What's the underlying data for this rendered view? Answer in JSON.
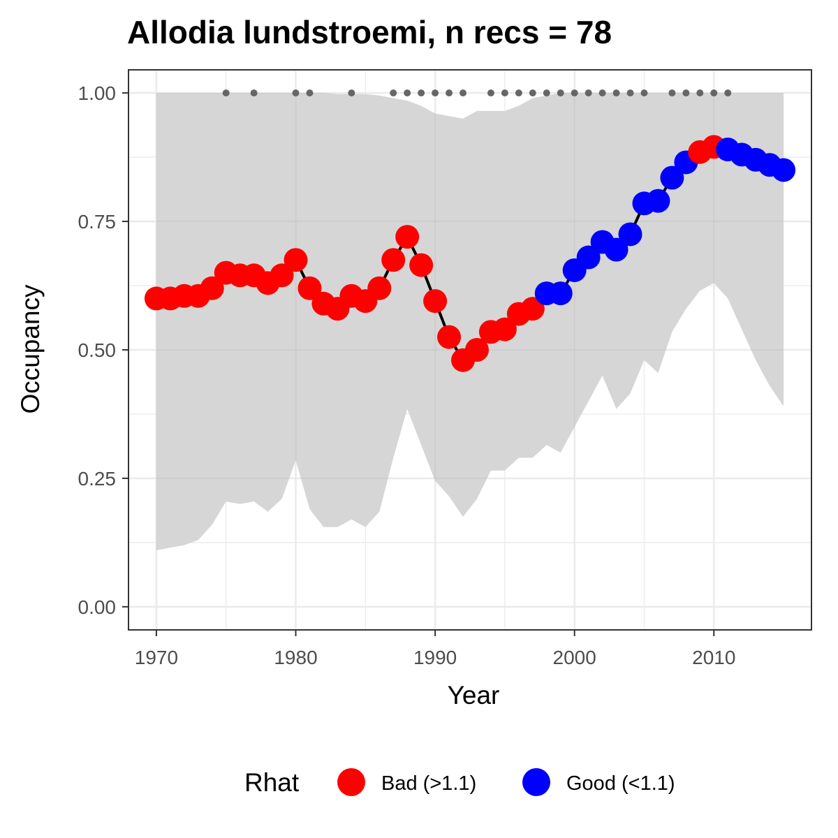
{
  "chart_data": {
    "type": "line",
    "title": "Allodia lundstroemi, n recs = 78",
    "xlabel": "Year",
    "ylabel": "Occupancy",
    "xlim": [
      1968,
      2017
    ],
    "ylim": [
      -0.045,
      1.045
    ],
    "x_ticks": [
      1970,
      1980,
      1990,
      2000,
      2010
    ],
    "x_tick_labels": [
      "1970",
      "1980",
      "1990",
      "2000",
      "2010"
    ],
    "y_ticks": [
      0,
      0.25,
      0.5,
      0.75,
      1
    ],
    "y_tick_labels": [
      "0.00",
      "0.25",
      "0.50",
      "0.75",
      "1.00"
    ],
    "grid": true,
    "legend": {
      "title": "Rhat",
      "placement": "bottom",
      "items": [
        {
          "key": "bad",
          "label": "Bad (>1.1)",
          "color": "#ff0000"
        },
        {
          "key": "good",
          "label": "Good (<1.1)",
          "color": "#0000ff"
        }
      ]
    },
    "colors": {
      "bad": "#ff0000",
      "good": "#0000ff",
      "line": "#000000",
      "ribbon": "#d6d6d6",
      "record_dot": "#666666"
    },
    "x": [
      1970,
      1971,
      1972,
      1973,
      1974,
      1975,
      1976,
      1977,
      1978,
      1979,
      1980,
      1981,
      1982,
      1983,
      1984,
      1985,
      1986,
      1987,
      1988,
      1989,
      1990,
      1991,
      1992,
      1993,
      1994,
      1995,
      1996,
      1997,
      1998,
      1999,
      2000,
      2001,
      2002,
      2003,
      2004,
      2005,
      2006,
      2007,
      2008,
      2009,
      2010,
      2011,
      2012,
      2013,
      2014,
      2015
    ],
    "occupancy": [
      0.6,
      0.6,
      0.605,
      0.605,
      0.62,
      0.65,
      0.645,
      0.645,
      0.63,
      0.645,
      0.675,
      0.62,
      0.59,
      0.58,
      0.605,
      0.595,
      0.62,
      0.675,
      0.72,
      0.665,
      0.595,
      0.525,
      0.48,
      0.5,
      0.535,
      0.54,
      0.57,
      0.58,
      0.61,
      0.61,
      0.655,
      0.68,
      0.71,
      0.695,
      0.725,
      0.785,
      0.79,
      0.835,
      0.865,
      0.885,
      0.895,
      0.89,
      0.88,
      0.87,
      0.86,
      0.85
    ],
    "rhat": [
      "bad",
      "bad",
      "bad",
      "bad",
      "bad",
      "bad",
      "bad",
      "bad",
      "bad",
      "bad",
      "bad",
      "bad",
      "bad",
      "bad",
      "bad",
      "bad",
      "bad",
      "bad",
      "bad",
      "bad",
      "bad",
      "bad",
      "bad",
      "bad",
      "bad",
      "bad",
      "bad",
      "bad",
      "good",
      "good",
      "good",
      "good",
      "good",
      "good",
      "good",
      "good",
      "good",
      "good",
      "good",
      "bad",
      "bad",
      "good",
      "good",
      "good",
      "good",
      "good"
    ],
    "lower": [
      0.11,
      0.115,
      0.12,
      0.13,
      0.16,
      0.205,
      0.2,
      0.205,
      0.185,
      0.21,
      0.285,
      0.19,
      0.155,
      0.155,
      0.17,
      0.155,
      0.185,
      0.29,
      0.385,
      0.315,
      0.245,
      0.215,
      0.175,
      0.21,
      0.265,
      0.265,
      0.29,
      0.29,
      0.315,
      0.3,
      0.35,
      0.4,
      0.45,
      0.385,
      0.415,
      0.48,
      0.455,
      0.535,
      0.58,
      0.615,
      0.63,
      0.6,
      0.54,
      0.48,
      0.43,
      0.39
    ],
    "upper": [
      1,
      1,
      1,
      1,
      1,
      1,
      1,
      1,
      1,
      1,
      1,
      1,
      1,
      0.998,
      0.998,
      0.998,
      0.995,
      0.99,
      0.985,
      0.975,
      0.96,
      0.955,
      0.95,
      0.965,
      0.965,
      0.965,
      0.975,
      0.99,
      0.995,
      1,
      1,
      1,
      1,
      1,
      1,
      1,
      1,
      1,
      1,
      1,
      1,
      1,
      1,
      1,
      1,
      1
    ],
    "record_years": [
      1975,
      1977,
      1980,
      1981,
      1984,
      1987,
      1988,
      1989,
      1990,
      1991,
      1992,
      1994,
      1995,
      1996,
      1997,
      1998,
      1999,
      2000,
      2001,
      2002,
      2003,
      2004,
      2005,
      2007,
      2008,
      2009,
      2010,
      2011
    ],
    "record_value": 1.0
  }
}
